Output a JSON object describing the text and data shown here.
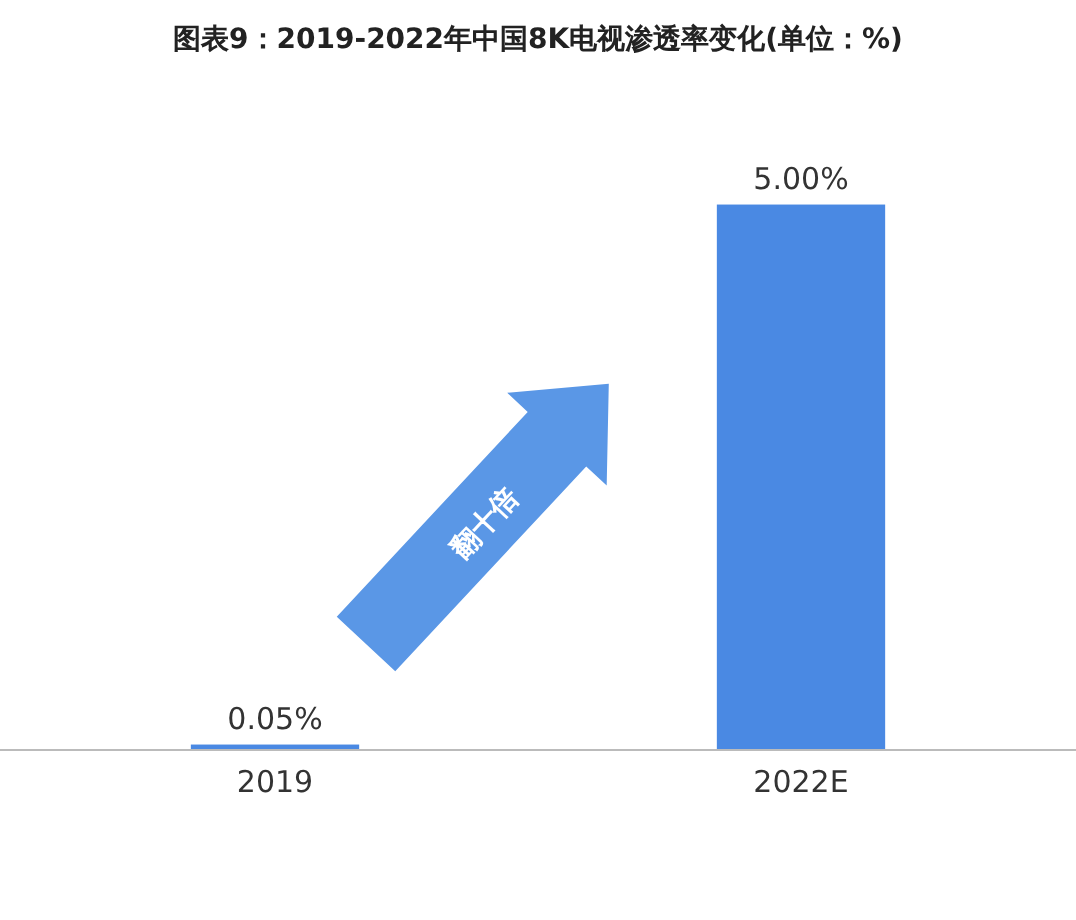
{
  "chart_data": {
    "type": "bar",
    "title": "图表9：2019-2022年中国8K电视渗透率变化(单位：%)",
    "categories": [
      "2019",
      "2022E"
    ],
    "values": [
      0.05,
      5.0
    ],
    "color": "#4a89e3",
    "value_labels": [
      "0.05%",
      "5.00%"
    ],
    "annotations": [
      "翻十倍"
    ]
  }
}
